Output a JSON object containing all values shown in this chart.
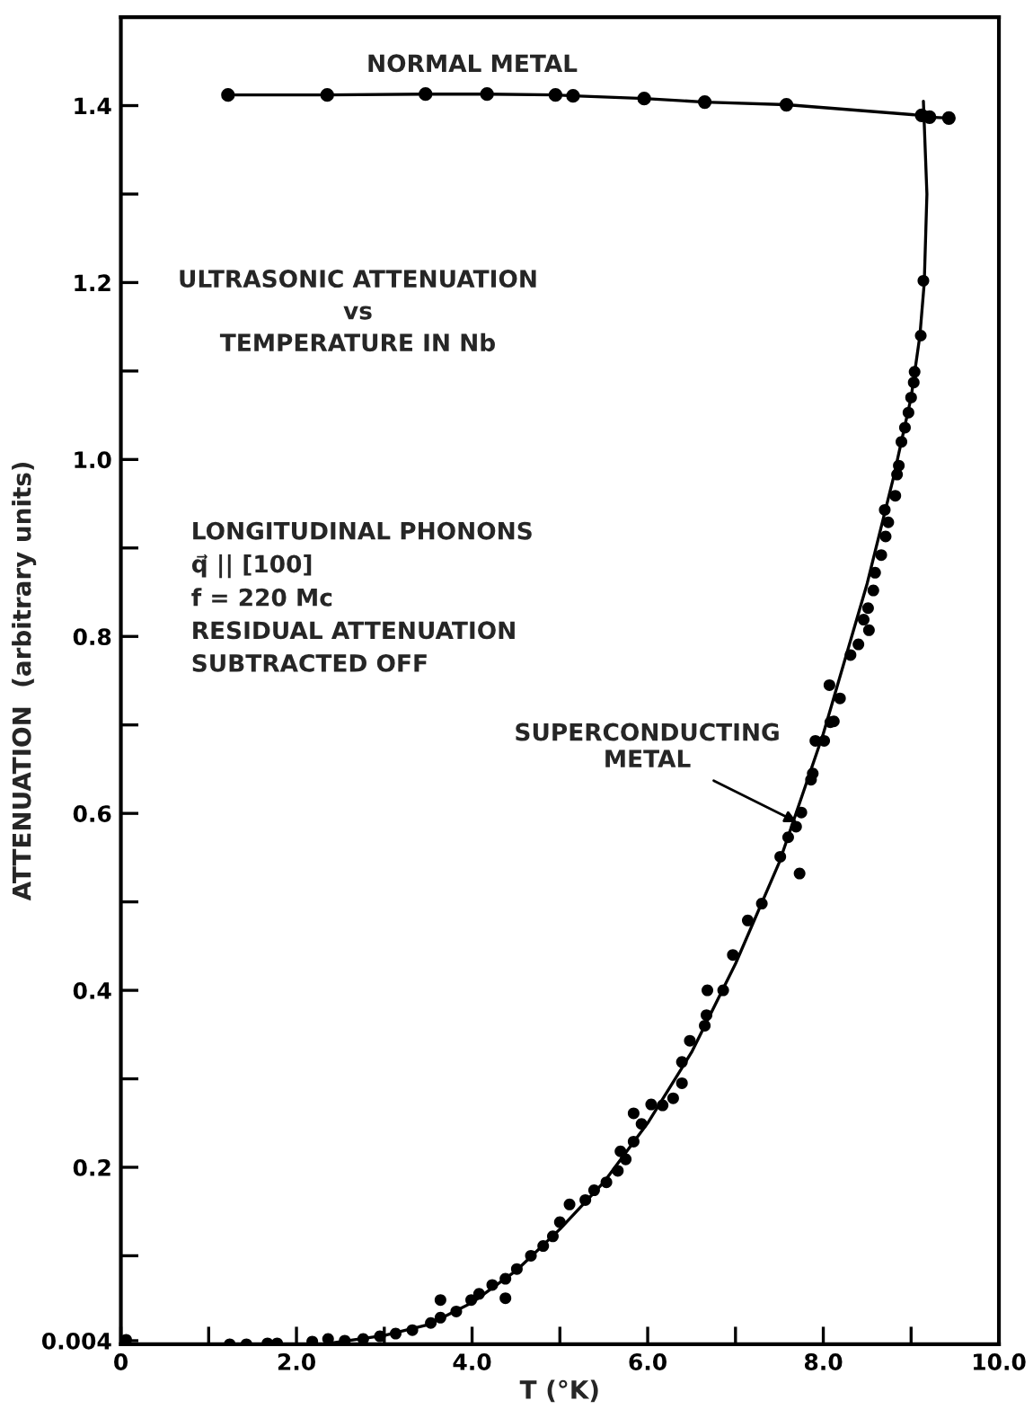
{
  "chart_data": {
    "type": "scatter",
    "title": "ULTRASONIC ATTENUATION\nvs\nTEMPERATURE IN Nb",
    "xlabel": "T (°K)",
    "ylabel": "ATTENUATION  (arbitrary units)",
    "xlim": [
      0,
      10
    ],
    "ylim": [
      0,
      1.5
    ],
    "xticks": [
      {
        "value": 0,
        "label": "0"
      },
      {
        "value": 1,
        "label": null
      },
      {
        "value": 2,
        "label": "2.0"
      },
      {
        "value": 3,
        "label": null
      },
      {
        "value": 4,
        "label": "4.0"
      },
      {
        "value": 5,
        "label": null
      },
      {
        "value": 6,
        "label": "6.0"
      },
      {
        "value": 7,
        "label": null
      },
      {
        "value": 8,
        "label": "8.0"
      },
      {
        "value": 9,
        "label": null
      },
      {
        "value": 10,
        "label": "10.0"
      }
    ],
    "yticks": [
      0.004,
      {
        "value": 0.1,
        "label": null
      },
      {
        "value": 0.2,
        "label": "0.2"
      },
      {
        "value": 0.3,
        "label": null
      },
      {
        "value": 0.4,
        "label": "0.4"
      },
      {
        "value": 0.5,
        "label": null
      },
      {
        "value": 0.6,
        "label": "0.6"
      },
      {
        "value": 0.7,
        "label": null
      },
      {
        "value": 0.8,
        "label": "0.8"
      },
      {
        "value": 0.9,
        "label": null
      },
      {
        "value": 1.0,
        "label": "1.0"
      },
      {
        "value": 1.1,
        "label": null
      },
      {
        "value": 1.2,
        "label": "1.2"
      },
      {
        "value": 1.3,
        "label": null
      },
      {
        "value": 1.4,
        "label": "1.4"
      }
    ],
    "grid": false,
    "legend": false,
    "annotations": [
      {
        "text": "NORMAL METAL",
        "x": 4.0,
        "y": 1.41
      },
      "LONGITUDINAL PHONONS\nq⃗ || [100]\nf = 220 Mc\nRESIDUAL ATTENUATION\nSUBTRACTED OFF",
      {
        "text": "SUPERCONDUCTING\nMETAL",
        "x": 7.7,
        "y": 0.59
      }
    ],
    "series": [
      {
        "type": "line",
        "marker": "circle",
        "color": "#000000",
        "x": [
          1.22,
          2.35,
          3.47,
          4.17,
          4.95,
          5.15,
          5.96,
          6.65,
          7.58,
          9.12,
          9.21,
          9.43
        ],
        "values": [
          1.412,
          1.412,
          1.413,
          1.413,
          1.412,
          1.411,
          1.408,
          1.404,
          1.401,
          1.389,
          1.387,
          1.386
        ]
      },
      {
        "marker": "circle",
        "color": "#000000",
        "x": [
          0.06,
          1.24,
          1.43,
          1.67,
          1.78,
          2.18,
          2.36,
          2.55,
          2.76,
          2.95,
          3.13,
          3.32,
          3.53,
          3.64,
          3.64,
          3.82,
          3.99,
          4.08,
          4.23,
          4.38,
          4.38,
          4.51,
          4.67,
          4.81,
          4.92,
          5.0,
          5.11,
          5.29,
          5.39,
          5.53,
          5.66,
          5.69,
          5.75,
          5.84,
          5.84,
          5.93,
          6.04,
          6.17,
          6.29,
          6.39,
          6.39,
          6.48,
          6.65,
          6.67,
          6.68,
          6.86,
          6.97,
          7.14,
          7.3,
          7.51,
          7.6,
          7.69,
          7.73,
          7.75,
          7.86,
          7.88,
          7.91,
          8.01,
          8.08,
          8.07,
          8.12,
          8.19,
          8.31,
          8.4,
          8.52,
          8.46,
          8.51,
          8.57,
          8.59,
          8.66,
          8.71,
          8.74,
          8.7,
          8.82,
          8.84,
          8.86,
          8.89,
          8.93,
          8.97,
          9.0,
          9.03,
          9.04,
          9.11,
          9.14
        ],
        "values": [
          0.005,
          0.0,
          0.0,
          0.001,
          0.001,
          0.003,
          0.006,
          0.004,
          0.006,
          0.009,
          0.012,
          0.016,
          0.024,
          0.03,
          0.05,
          0.037,
          0.05,
          0.057,
          0.067,
          0.074,
          0.052,
          0.085,
          0.1,
          0.111,
          0.122,
          0.138,
          0.158,
          0.163,
          0.174,
          0.183,
          0.196,
          0.218,
          0.209,
          0.261,
          0.229,
          0.249,
          0.271,
          0.27,
          0.278,
          0.295,
          0.319,
          0.343,
          0.36,
          0.372,
          0.4,
          0.4,
          0.44,
          0.479,
          0.498,
          0.551,
          0.573,
          0.585,
          0.532,
          0.601,
          0.638,
          0.645,
          0.682,
          0.682,
          0.703,
          0.745,
          0.704,
          0.73,
          0.779,
          0.791,
          0.807,
          0.819,
          0.832,
          0.852,
          0.872,
          0.892,
          0.913,
          0.929,
          0.943,
          0.959,
          0.983,
          0.993,
          1.02,
          1.036,
          1.053,
          1.07,
          1.087,
          1.099,
          1.14,
          1.202
        ]
      },
      {
        "type": "line",
        "marker": "none",
        "color": "#000000",
        "x": [
          2.3,
          3.0,
          3.5,
          4.0,
          4.5,
          5.0,
          5.5,
          6.0,
          6.5,
          7.0,
          7.5,
          8.0,
          8.5,
          8.8,
          9.0,
          9.1,
          9.15,
          9.18,
          9.14
        ],
        "values": [
          0.0,
          0.01,
          0.022,
          0.047,
          0.083,
          0.13,
          0.183,
          0.25,
          0.33,
          0.43,
          0.545,
          0.69,
          0.86,
          0.98,
          1.07,
          1.14,
          1.2,
          1.3,
          1.405
        ]
      }
    ]
  }
}
